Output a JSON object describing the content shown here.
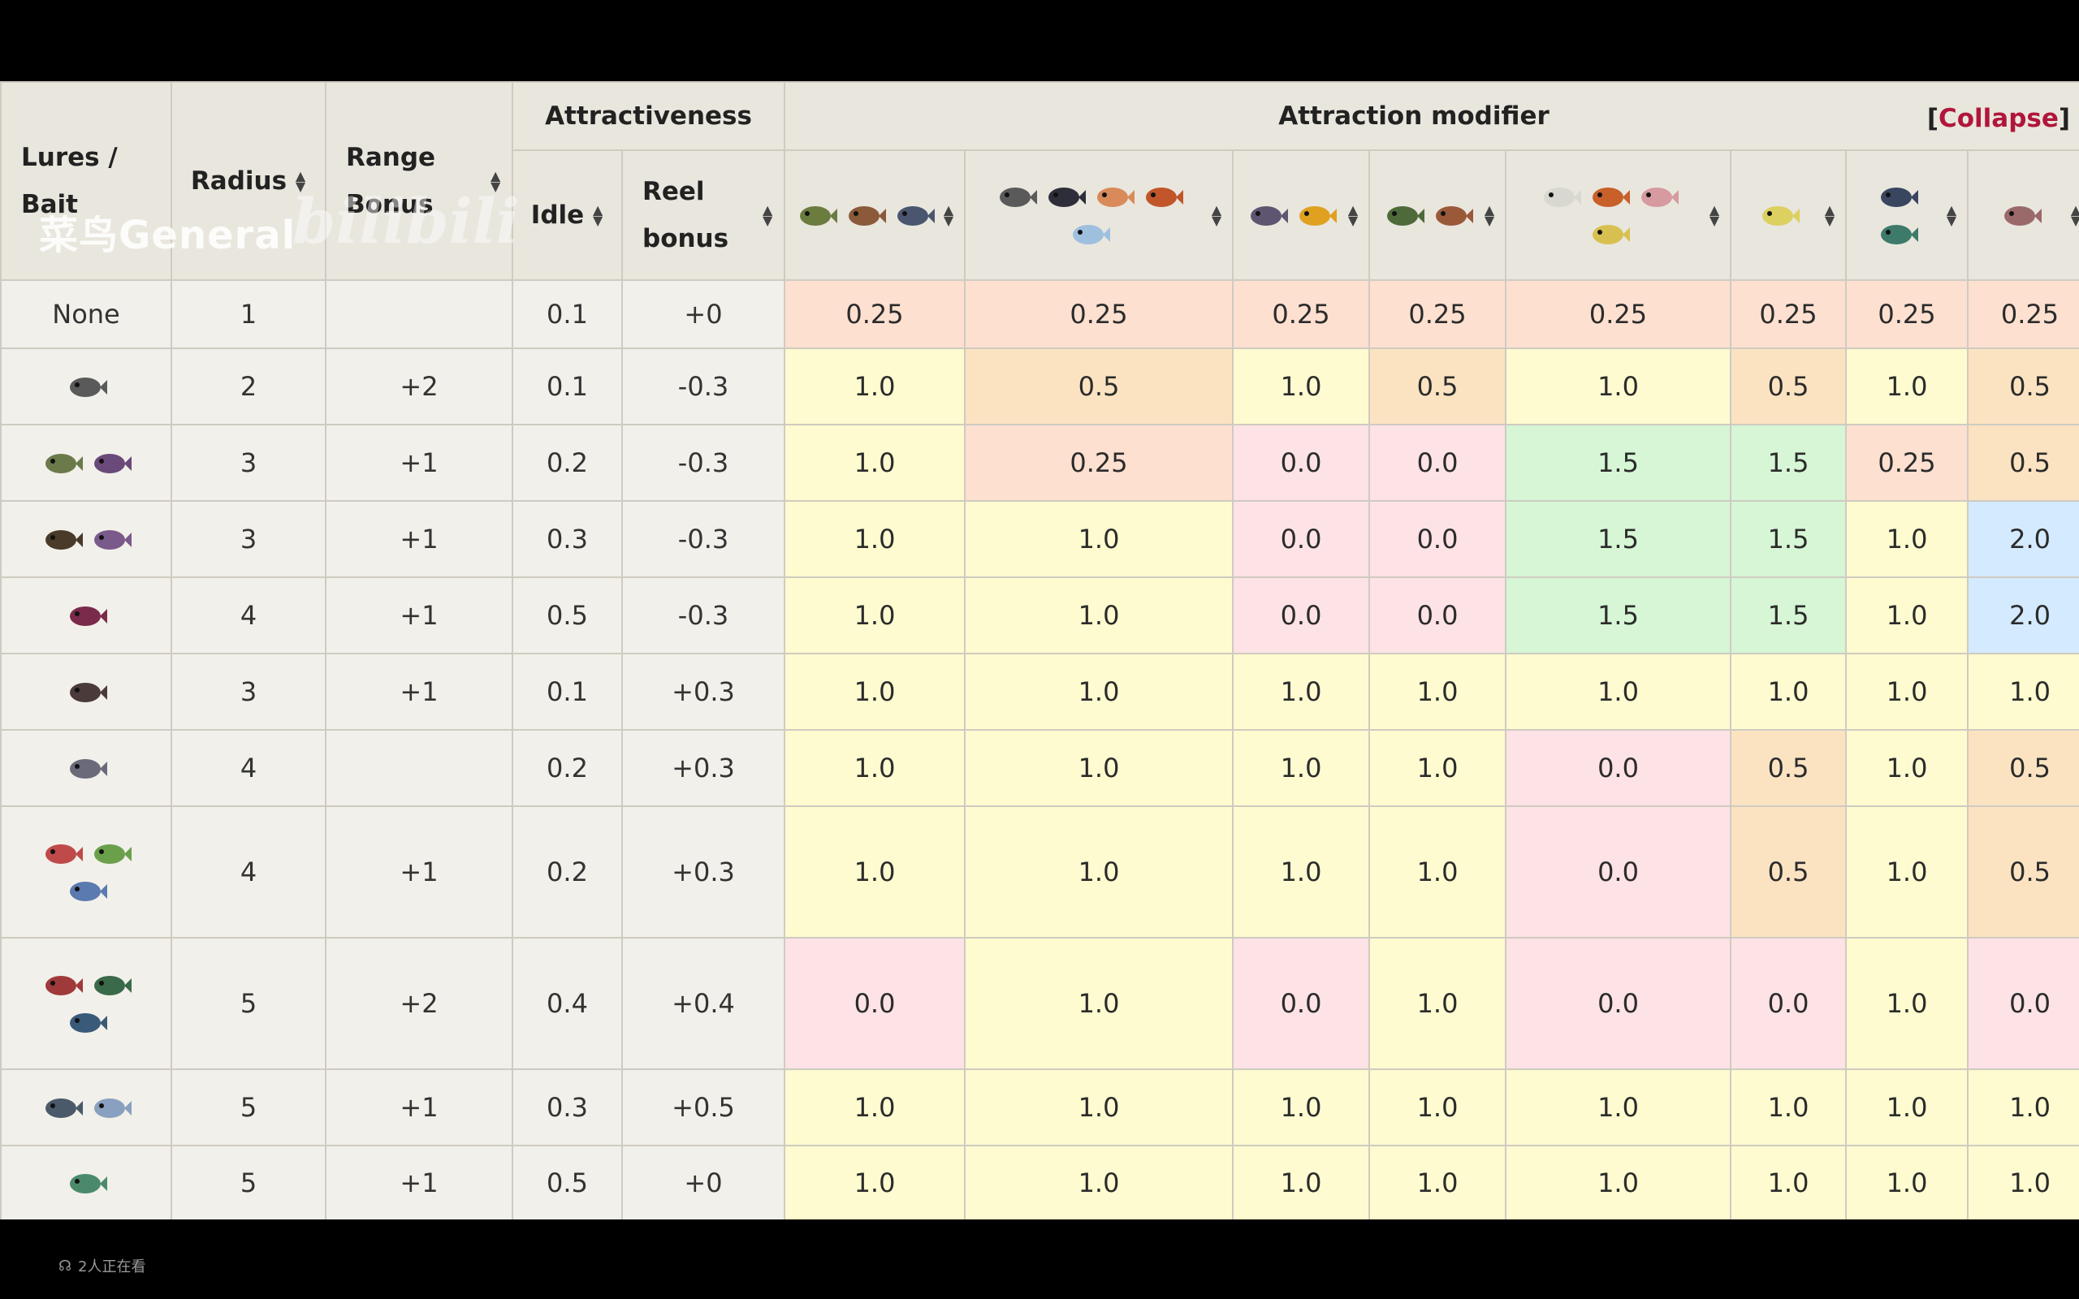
{
  "header": {
    "lures_bait": "Lures / Bait",
    "radius": "Radius",
    "range_bonus": "Range Bonus",
    "attractiveness": "Attractiveness",
    "idle": "Idle",
    "reel_bonus": "Reel bonus",
    "attraction_modifier": "Attraction modifier",
    "collapse_open": "[",
    "collapse_label": "Collapse",
    "collapse_close": "]"
  },
  "watermark": {
    "text": "菜鸟General",
    "logo": "bilibili"
  },
  "footer": {
    "viewers": "2人正在看"
  },
  "fish_groups": [
    {
      "icons": [
        "fish-green-icon",
        "fish-brown-icon",
        "fish-blue-icon"
      ]
    },
    {
      "icons": [
        "fish-spiky-icon",
        "fish-dark-icon",
        "fish-orange-icon",
        "fish-red-icon",
        "fish-ice-icon"
      ]
    },
    {
      "icons": [
        "fish-purple-icon",
        "fish-sun-icon"
      ]
    },
    {
      "icons": [
        "fish-green-dark-icon",
        "fish-brown-dark-icon"
      ]
    },
    {
      "icons": [
        "fish-white-icon",
        "fish-orange-red-icon",
        "fish-pink-icon",
        "fish-yellow-icon"
      ]
    },
    {
      "icons": [
        "fish-yellow-small-icon"
      ]
    },
    {
      "icons": [
        "fish-navy-icon",
        "fish-teal-icon"
      ]
    },
    {
      "icons": [
        "fish-salmon-icon"
      ]
    }
  ],
  "rows": [
    {
      "bait": "None",
      "bait_icons": [],
      "radius": "1",
      "range": "",
      "idle": "0.1",
      "reel": "+0",
      "mods": [
        "0.25",
        "0.25",
        "0.25",
        "0.25",
        "0.25",
        "0.25",
        "0.25",
        "0.25"
      ],
      "colors": [
        "salmon",
        "salmon",
        "salmon",
        "salmon",
        "salmon",
        "salmon",
        "salmon",
        "salmon"
      ]
    },
    {
      "bait": "",
      "bait_icons": [
        "rock-bait-icon"
      ],
      "radius": "2",
      "range": "+2",
      "idle": "0.1",
      "reel": "-0.3",
      "mods": [
        "1.0",
        "0.5",
        "1.0",
        "0.5",
        "1.0",
        "0.5",
        "1.0",
        "0.5"
      ],
      "colors": [
        "yellow",
        "orange",
        "yellow",
        "orange",
        "yellow",
        "orange",
        "yellow",
        "orange"
      ]
    },
    {
      "bait": "",
      "bait_icons": [
        "leaf-bait-icon",
        "berry-bait-icon"
      ],
      "radius": "3",
      "range": "+1",
      "idle": "0.2",
      "reel": "-0.3",
      "mods": [
        "1.0",
        "0.25",
        "0.0",
        "0.0",
        "1.5",
        "1.5",
        "0.25",
        "0.5"
      ],
      "colors": [
        "yellow",
        "salmon",
        "pink",
        "pink",
        "green",
        "green",
        "salmon",
        "orange"
      ]
    },
    {
      "bait": "",
      "bait_icons": [
        "seeds-bait-icon",
        "flower-bait-icon"
      ],
      "radius": "3",
      "range": "+1",
      "idle": "0.3",
      "reel": "-0.3",
      "mods": [
        "1.0",
        "1.0",
        "0.0",
        "0.0",
        "1.5",
        "1.5",
        "1.0",
        "2.0"
      ],
      "colors": [
        "yellow",
        "yellow",
        "pink",
        "pink",
        "green",
        "green",
        "yellow",
        "blue"
      ]
    },
    {
      "bait": "",
      "bait_icons": [
        "onion-bait-icon"
      ],
      "radius": "4",
      "range": "+1",
      "idle": "0.5",
      "reel": "-0.3",
      "mods": [
        "1.0",
        "1.0",
        "0.0",
        "0.0",
        "1.5",
        "1.5",
        "1.0",
        "2.0"
      ],
      "colors": [
        "yellow",
        "yellow",
        "pink",
        "pink",
        "green",
        "green",
        "yellow",
        "blue"
      ]
    },
    {
      "bait": "",
      "bait_icons": [
        "spider-lure-icon"
      ],
      "radius": "3",
      "range": "+1",
      "idle": "0.1",
      "reel": "+0.3",
      "mods": [
        "1.0",
        "1.0",
        "1.0",
        "1.0",
        "1.0",
        "1.0",
        "1.0",
        "1.0"
      ],
      "colors": [
        "yellow",
        "yellow",
        "yellow",
        "yellow",
        "yellow",
        "yellow",
        "yellow",
        "yellow"
      ]
    },
    {
      "bait": "",
      "bait_icons": [
        "feather-lure-icon"
      ],
      "radius": "4",
      "range": "",
      "idle": "0.2",
      "reel": "+0.3",
      "mods": [
        "1.0",
        "1.0",
        "1.0",
        "1.0",
        "0.0",
        "0.5",
        "1.0",
        "0.5"
      ],
      "colors": [
        "yellow",
        "yellow",
        "yellow",
        "yellow",
        "pink",
        "orange",
        "yellow",
        "orange"
      ]
    },
    {
      "bait": "",
      "bait_icons": [
        "red-spoon-lure-icon",
        "green-spoon-lure-icon",
        "blue-spoon-lure-icon"
      ],
      "radius": "4",
      "range": "+1",
      "idle": "0.2",
      "reel": "+0.3",
      "mods": [
        "1.0",
        "1.0",
        "1.0",
        "1.0",
        "0.0",
        "0.5",
        "1.0",
        "0.5"
      ],
      "colors": [
        "yellow",
        "yellow",
        "yellow",
        "yellow",
        "pink",
        "orange",
        "yellow",
        "orange"
      ]
    },
    {
      "bait": "",
      "bait_icons": [
        "red-bobber-lure-icon",
        "green-bobber-lure-icon",
        "blue-bobber-lure-icon"
      ],
      "radius": "5",
      "range": "+2",
      "idle": "0.4",
      "reel": "+0.4",
      "mods": [
        "0.0",
        "1.0",
        "0.0",
        "1.0",
        "0.0",
        "0.0",
        "1.0",
        "0.0"
      ],
      "colors": [
        "pink",
        "yellow",
        "pink",
        "yellow",
        "pink",
        "pink",
        "yellow",
        "pink"
      ]
    },
    {
      "bait": "",
      "bait_icons": [
        "bird-lure-icon",
        "star-lure-icon"
      ],
      "radius": "5",
      "range": "+1",
      "idle": "0.3",
      "reel": "+0.5",
      "mods": [
        "1.0",
        "1.0",
        "1.0",
        "1.0",
        "1.0",
        "1.0",
        "1.0",
        "1.0"
      ],
      "colors": [
        "yellow",
        "yellow",
        "yellow",
        "yellow",
        "yellow",
        "yellow",
        "yellow",
        "yellow"
      ]
    },
    {
      "bait": "",
      "bait_icons": [
        "glow-lure-icon"
      ],
      "radius": "5",
      "range": "+1",
      "idle": "0.5",
      "reel": "+0",
      "mods": [
        "1.0",
        "1.0",
        "1.0",
        "1.0",
        "1.0",
        "1.0",
        "1.0",
        "1.0"
      ],
      "colors": [
        "yellow",
        "yellow",
        "yellow",
        "yellow",
        "yellow",
        "yellow",
        "yellow",
        "yellow"
      ]
    }
  ],
  "icon_colors": {
    "fish-green-icon": "#6b7c3f",
    "fish-brown-icon": "#8a5a3a",
    "fish-blue-icon": "#4a5670",
    "fish-spiky-icon": "#5a5a5a",
    "fish-dark-icon": "#2e2e3a",
    "fish-orange-icon": "#d98a5a",
    "fish-red-icon": "#c0562a",
    "fish-ice-icon": "#9fbfdf",
    "fish-purple-icon": "#5e5670",
    "fish-sun-icon": "#e0a020",
    "fish-green-dark-icon": "#4e6a3a",
    "fish-brown-dark-icon": "#9a5a3a",
    "fish-white-icon": "#d8d8d0",
    "fish-orange-red-icon": "#c8602a",
    "fish-pink-icon": "#d69aa0",
    "fish-yellow-icon": "#d8c050",
    "fish-yellow-small-icon": "#dcd060",
    "fish-navy-icon": "#3a4660",
    "fish-teal-icon": "#3e7a6a",
    "fish-salmon-icon": "#9a6a6a",
    "rock-bait-icon": "#5a5a5a",
    "leaf-bait-icon": "#6a7a4a",
    "berry-bait-icon": "#6a4a7a",
    "seeds-bait-icon": "#4a3a2a",
    "flower-bait-icon": "#7a5a8a",
    "onion-bait-icon": "#7a2a4a",
    "spider-lure-icon": "#4a3a3a",
    "feather-lure-icon": "#6a6a7a",
    "red-spoon-lure-icon": "#c04a4a",
    "green-spoon-lure-icon": "#6aa04a",
    "blue-spoon-lure-icon": "#5a7ab0",
    "red-bobber-lure-icon": "#a03a3a",
    "green-bobber-lure-icon": "#3a6a4a",
    "blue-bobber-lure-icon": "#3a5a7a",
    "bird-lure-icon": "#4a5a6a",
    "star-lure-icon": "#8aa0c0",
    "glow-lure-icon": "#4a8a6a"
  }
}
